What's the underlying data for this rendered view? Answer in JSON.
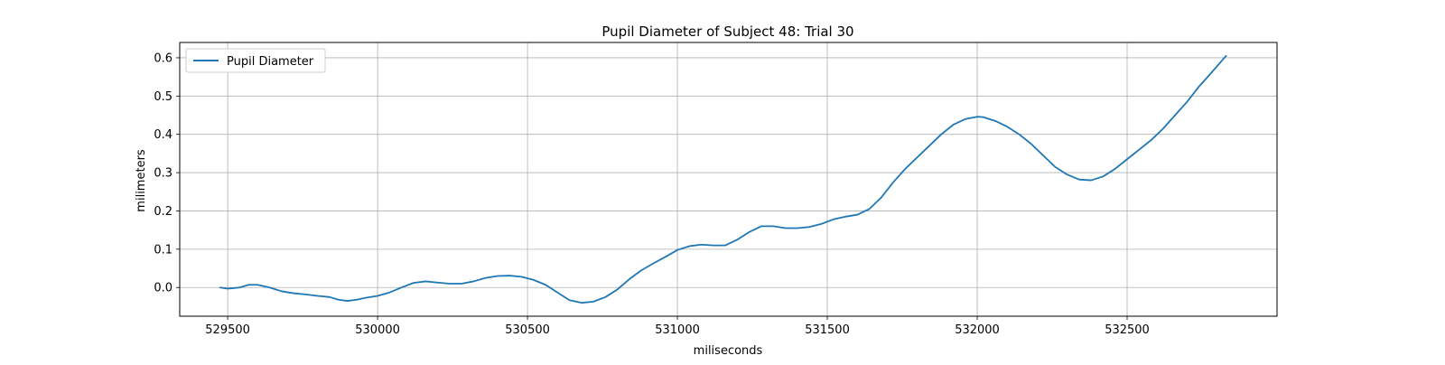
{
  "chart_data": {
    "type": "line",
    "title": "Pupil Diameter of Subject 48: Trial 30",
    "xlabel": "miliseconds",
    "ylabel": "milimeters",
    "xlim": [
      529340,
      533000
    ],
    "ylim": [
      -0.075,
      0.64
    ],
    "xticks": [
      529500,
      530000,
      530500,
      531000,
      531500,
      532000,
      532500
    ],
    "yticks": [
      0.0,
      0.1,
      0.2,
      0.3,
      0.4,
      0.5,
      0.6
    ],
    "ytick_labels": [
      "0.0",
      "0.1",
      "0.2",
      "0.3",
      "0.4",
      "0.5",
      "0.6"
    ],
    "grid": true,
    "legend_position": "upper-left",
    "series": [
      {
        "name": "Pupil Diameter",
        "color": "#1f77b4",
        "x": [
          529475,
          529500,
          529540,
          529570,
          529600,
          529640,
          529680,
          529720,
          529760,
          529800,
          529840,
          529870,
          529900,
          529930,
          529960,
          530000,
          530040,
          530080,
          530120,
          530160,
          530200,
          530240,
          530280,
          530320,
          530360,
          530400,
          530440,
          530480,
          530520,
          530560,
          530600,
          530640,
          530680,
          530720,
          530760,
          530800,
          530840,
          530880,
          530920,
          530960,
          531000,
          531040,
          531080,
          531120,
          531160,
          531200,
          531240,
          531280,
          531320,
          531360,
          531400,
          531440,
          531480,
          531520,
          531560,
          531600,
          531640,
          531680,
          531720,
          531760,
          531800,
          531840,
          531880,
          531920,
          531960,
          532000,
          532020,
          532060,
          532100,
          532140,
          532180,
          532220,
          532260,
          532300,
          532340,
          532380,
          532420,
          532460,
          532500,
          532540,
          532580,
          532620,
          532660,
          532700,
          532740,
          532780,
          532830
        ],
        "y": [
          0.0,
          -0.003,
          0.0,
          0.007,
          0.007,
          0.0,
          -0.01,
          -0.015,
          -0.018,
          -0.022,
          -0.025,
          -0.032,
          -0.035,
          -0.032,
          -0.027,
          -0.022,
          -0.013,
          0.0,
          0.012,
          0.016,
          0.013,
          0.01,
          0.01,
          0.016,
          0.025,
          0.03,
          0.031,
          0.028,
          0.02,
          0.007,
          -0.013,
          -0.033,
          -0.04,
          -0.037,
          -0.025,
          -0.005,
          0.022,
          0.045,
          0.063,
          0.08,
          0.098,
          0.108,
          0.112,
          0.11,
          0.11,
          0.125,
          0.145,
          0.16,
          0.16,
          0.155,
          0.155,
          0.158,
          0.166,
          0.178,
          0.185,
          0.19,
          0.205,
          0.235,
          0.275,
          0.31,
          0.34,
          0.37,
          0.4,
          0.425,
          0.44,
          0.446,
          0.445,
          0.435,
          0.42,
          0.4,
          0.375,
          0.345,
          0.315,
          0.295,
          0.282,
          0.28,
          0.29,
          0.31,
          0.335,
          0.36,
          0.385,
          0.415,
          0.45,
          0.485,
          0.525,
          0.56,
          0.605
        ]
      }
    ]
  }
}
